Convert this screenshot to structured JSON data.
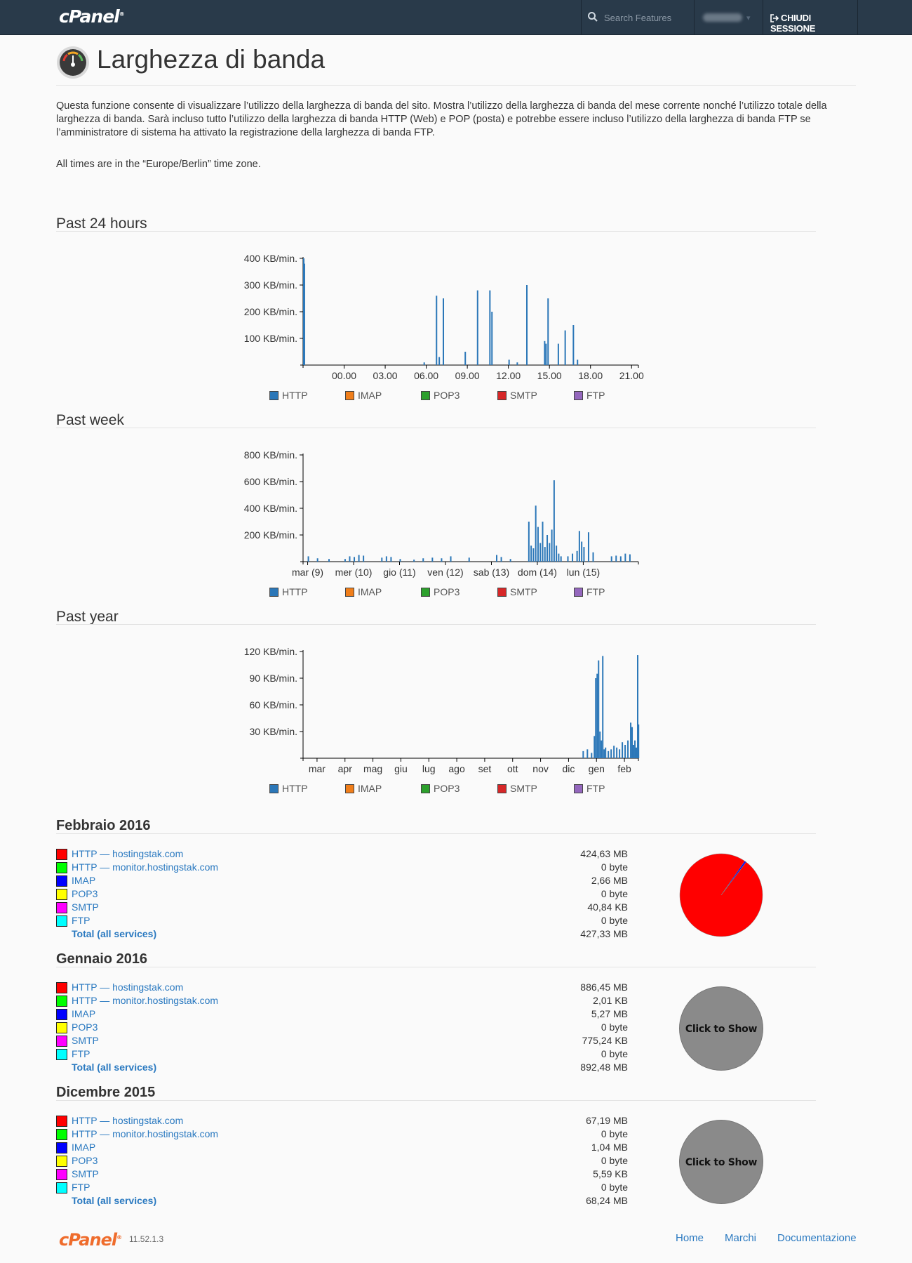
{
  "header": {
    "logo": "cPanel",
    "search_placeholder": "Search Features",
    "logout_label": "CHIUDI SESSIONE"
  },
  "page": {
    "title": "Larghezza di banda",
    "description": "Questa funzione consente di visualizzare l’utilizzo della larghezza di banda del sito. Mostra l’utilizzo della larghezza di banda del mese corrente nonché l’utilizzo totale della larghezza di banda. Sarà incluso tutto l’utilizzo della larghezza di banda HTTP (Web) e POP (posta) e potrebbe essere incluso l’utilizzo della larghezza di banda FTP se l’amministratore di sistema ha attivato la registrazione della larghezza di banda FTP.",
    "timezone_note": "All times are in the “Europe/Berlin” time zone."
  },
  "legend": [
    {
      "name": "HTTP",
      "color": "#2b77b8"
    },
    {
      "name": "IMAP",
      "color": "#f07e1a"
    },
    {
      "name": "POP3",
      "color": "#2ca02c"
    },
    {
      "name": "SMTP",
      "color": "#d62728"
    },
    {
      "name": "FTP",
      "color": "#9467bd"
    }
  ],
  "chart_data": [
    {
      "title": "Past 24 hours",
      "type": "bar",
      "ylim": [
        0,
        400
      ],
      "yticks": [
        100,
        200,
        300,
        400
      ],
      "ytick_labels": [
        "100 KB/min.",
        "200 KB/min.",
        "300 KB/min.",
        "400 KB/min."
      ],
      "xlim": [
        -3,
        21.5
      ],
      "xticks": [
        0,
        3,
        6,
        9,
        12,
        15,
        18,
        21
      ],
      "xtick_labels": [
        "00.00",
        "03.00",
        "06.00",
        "09.00",
        "12.00",
        "15.00",
        "18.00",
        "21.00"
      ],
      "series": [
        {
          "name": "HTTP",
          "x": [
            -3.0,
            -2.95,
            5.8,
            6.7,
            6.9,
            7.2,
            8.8,
            9.7,
            10.6,
            10.75,
            12.0,
            12.6,
            13.3,
            14.6,
            14.7,
            14.85,
            15.6,
            16.1,
            16.7,
            17.0
          ],
          "values": [
            400,
            380,
            10,
            260,
            30,
            250,
            50,
            280,
            280,
            200,
            20,
            10,
            300,
            90,
            80,
            250,
            80,
            130,
            150,
            20
          ]
        }
      ]
    },
    {
      "title": "Past week",
      "type": "bar",
      "ylim": [
        0,
        800
      ],
      "yticks": [
        200,
        400,
        600,
        800
      ],
      "ytick_labels": [
        "200 KB/min.",
        "400 KB/min.",
        "600 KB/min.",
        "800 KB/min."
      ],
      "xlim": [
        0,
        7.3
      ],
      "xticks": [
        0.1,
        1.1,
        2.1,
        3.1,
        4.1,
        5.1,
        6.1
      ],
      "xtick_labels": [
        "mar (9)",
        "mer (10)",
        "gio (11)",
        "ven (12)",
        "sab (13)",
        "dom (14)",
        "lun (15)"
      ],
      "series": [
        {
          "name": "HTTP",
          "x": [
            0.1,
            0.3,
            0.55,
            0.9,
            1.0,
            1.1,
            1.2,
            1.3,
            1.7,
            1.8,
            1.9,
            2.1,
            2.4,
            2.6,
            2.8,
            3.0,
            3.2,
            3.6,
            4.2,
            4.3,
            4.5,
            4.9,
            4.95,
            5.0,
            5.05,
            5.1,
            5.15,
            5.2,
            5.25,
            5.3,
            5.35,
            5.4,
            5.45,
            5.5,
            5.55,
            5.6,
            5.75,
            5.85,
            5.95,
            6.0,
            6.05,
            6.1,
            6.2,
            6.3,
            6.7,
            6.8,
            6.9,
            7.0,
            7.1
          ],
          "values": [
            40,
            25,
            20,
            20,
            40,
            35,
            50,
            45,
            30,
            40,
            35,
            20,
            15,
            25,
            30,
            25,
            40,
            30,
            50,
            35,
            20,
            300,
            120,
            100,
            420,
            260,
            140,
            300,
            110,
            200,
            140,
            240,
            610,
            120,
            60,
            40,
            40,
            60,
            80,
            230,
            150,
            110,
            220,
            70,
            40,
            45,
            40,
            60,
            55
          ]
        }
      ]
    },
    {
      "title": "Past year",
      "type": "bar",
      "ylim": [
        0,
        120
      ],
      "yticks": [
        30,
        60,
        90,
        120
      ],
      "ytick_labels": [
        "30 KB/min.",
        "60 KB/min.",
        "90 KB/min.",
        "120 KB/min."
      ],
      "xlim": [
        0,
        12
      ],
      "xticks": [
        0.5,
        1.5,
        2.5,
        3.5,
        4.5,
        5.5,
        6.5,
        7.5,
        8.5,
        9.5,
        10.5,
        11.5
      ],
      "xtick_labels": [
        "mar",
        "apr",
        "mag",
        "giu",
        "lug",
        "ago",
        "set",
        "ott",
        "nov",
        "dic",
        "gen",
        "feb"
      ],
      "series": [
        {
          "name": "HTTP",
          "x": [
            10.0,
            10.15,
            10.3,
            10.4,
            10.45,
            10.5,
            10.55,
            10.6,
            10.65,
            10.7,
            10.75,
            10.8,
            10.9,
            11.0,
            11.1,
            11.2,
            11.3,
            11.4,
            11.5,
            11.6,
            11.7,
            11.75,
            11.8,
            11.85,
            11.9,
            11.95,
            11.98
          ],
          "values": [
            8,
            10,
            6,
            25,
            90,
            95,
            110,
            30,
            20,
            115,
            10,
            12,
            8,
            10,
            14,
            12,
            10,
            18,
            15,
            20,
            40,
            35,
            15,
            20,
            12,
            116,
            38
          ]
        }
      ]
    }
  ],
  "months": [
    {
      "title": "Febbraio 2016",
      "rows": [
        {
          "label": "HTTP — hostingstak.com",
          "value": "424,63 MB",
          "color": "#ff0000"
        },
        {
          "label": "HTTP — monitor.hostingstak.com",
          "value": "0 byte",
          "color": "#00ff00"
        },
        {
          "label": "IMAP",
          "value": "2,66 MB",
          "color": "#0000ff"
        },
        {
          "label": "POP3",
          "value": "0 byte",
          "color": "#ffff00"
        },
        {
          "label": "SMTP",
          "value": "40,84 KB",
          "color": "#ff00ff"
        },
        {
          "label": "FTP",
          "value": "0 byte",
          "color": "#00ffff"
        }
      ],
      "total_label": "Total (all services)",
      "total_value": "427,33 MB",
      "pie_fractions": [
        0.9937,
        0.0,
        0.0062,
        0.0,
        0.0001,
        0.0
      ]
    },
    {
      "title": "Gennaio 2016",
      "rows": [
        {
          "label": "HTTP — hostingstak.com",
          "value": "886,45 MB",
          "color": "#ff0000"
        },
        {
          "label": "HTTP — monitor.hostingstak.com",
          "value": "2,01 KB",
          "color": "#00ff00"
        },
        {
          "label": "IMAP",
          "value": "5,27 MB",
          "color": "#0000ff"
        },
        {
          "label": "POP3",
          "value": "0 byte",
          "color": "#ffff00"
        },
        {
          "label": "SMTP",
          "value": "775,24 KB",
          "color": "#ff00ff"
        },
        {
          "label": "FTP",
          "value": "0 byte",
          "color": "#00ffff"
        }
      ],
      "total_label": "Total (all services)",
      "total_value": "892,48 MB",
      "pie_button": "Click to Show"
    },
    {
      "title": "Dicembre 2015",
      "rows": [
        {
          "label": "HTTP — hostingstak.com",
          "value": "67,19 MB",
          "color": "#ff0000"
        },
        {
          "label": "HTTP — monitor.hostingstak.com",
          "value": "0 byte",
          "color": "#00ff00"
        },
        {
          "label": "IMAP",
          "value": "1,04 MB",
          "color": "#0000ff"
        },
        {
          "label": "POP3",
          "value": "0 byte",
          "color": "#ffff00"
        },
        {
          "label": "SMTP",
          "value": "5,59 KB",
          "color": "#ff00ff"
        },
        {
          "label": "FTP",
          "value": "0 byte",
          "color": "#00ffff"
        }
      ],
      "total_label": "Total (all services)",
      "total_value": "68,24 MB",
      "pie_button": "Click to Show"
    }
  ],
  "footer": {
    "logo": "cPanel",
    "version": "11.52.1.3",
    "links": [
      "Home",
      "Marchi",
      "Documentazione"
    ]
  }
}
